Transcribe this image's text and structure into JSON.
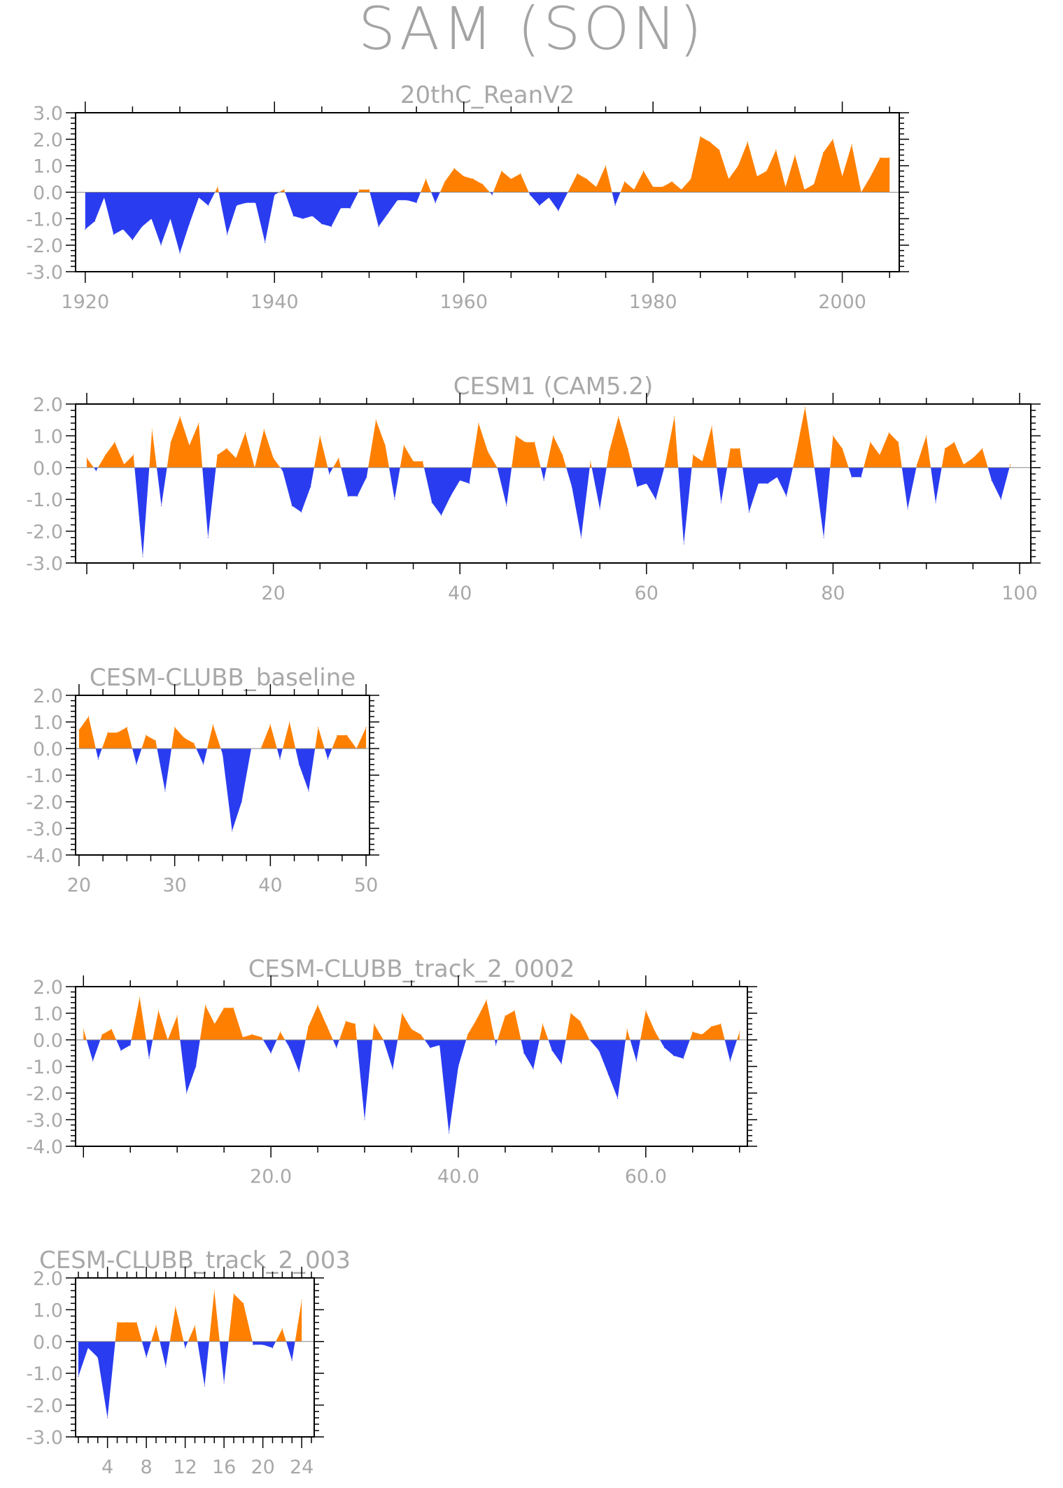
{
  "title": "SAM (SON)",
  "colors": {
    "positive": "#ff8000",
    "negative": "#2a3cf0",
    "axis": "#000000",
    "text": "#a8a8a8"
  },
  "chart_data": [
    {
      "type": "area",
      "title": "20thC_ReanV2",
      "xlabel": "",
      "ylabel": "",
      "x_start": 1920,
      "x_step": 1,
      "xlim": [
        1920,
        2005
      ],
      "ylim": [
        -3.0,
        3.0
      ],
      "xticks": [
        1920,
        1940,
        1960,
        1980,
        2000
      ],
      "xtick_labels": [
        "1920",
        "1940",
        "1960",
        "1980",
        "2000"
      ],
      "yticks": [
        -3.0,
        -2.0,
        -1.0,
        0.0,
        1.0,
        2.0,
        3.0
      ],
      "ytick_labels": [
        "-3.0",
        "-2.0",
        "-1.0",
        "0.0",
        "1.0",
        "2.0",
        "3.0"
      ],
      "values": [
        -1.4,
        -1.1,
        -0.2,
        -1.6,
        -1.4,
        -1.8,
        -1.3,
        -1.0,
        -2.0,
        -1.0,
        -2.3,
        -1.2,
        -0.2,
        -0.5,
        0.2,
        -1.6,
        -0.5,
        -0.4,
        -0.4,
        -1.9,
        -0.1,
        0.1,
        -0.9,
        -1.0,
        -0.9,
        -1.2,
        -1.3,
        -0.6,
        -0.6,
        0.1,
        0.1,
        -1.3,
        -0.8,
        -0.3,
        -0.3,
        -0.4,
        0.5,
        -0.4,
        0.4,
        0.9,
        0.6,
        0.5,
        0.3,
        -0.1,
        0.8,
        0.5,
        0.7,
        -0.1,
        -0.5,
        -0.2,
        -0.7,
        0.0,
        0.7,
        0.5,
        0.2,
        1.0,
        -0.5,
        0.4,
        0.1,
        0.8,
        0.2,
        0.2,
        0.4,
        0.1,
        0.5,
        2.1,
        1.9,
        1.6,
        0.5,
        1.0,
        1.9,
        0.6,
        0.8,
        1.6,
        0.2,
        1.4,
        0.1,
        0.3,
        1.5,
        2.0,
        0.6,
        1.8,
        0.0,
        0.6,
        1.3,
        1.3
      ]
    },
    {
      "type": "area",
      "title": "CESM1 (CAM5.2)",
      "xlabel": "",
      "ylabel": "",
      "x_start": 0,
      "x_step": 1,
      "xlim": [
        0,
        100
      ],
      "ylim": [
        -3.0,
        2.0
      ],
      "xticks": [
        20,
        40,
        60,
        80,
        100
      ],
      "xtick_labels": [
        "20",
        "40",
        "60",
        "80",
        "100"
      ],
      "yticks": [
        -3.0,
        -2.0,
        -1.0,
        0.0,
        1.0,
        2.0
      ],
      "ytick_labels": [
        "-3.0",
        "-2.0",
        "-1.0",
        "0.0",
        "1.0",
        "2.0"
      ],
      "values": [
        0.3,
        -0.1,
        0.4,
        0.8,
        0.1,
        0.4,
        -2.8,
        1.2,
        -1.2,
        0.8,
        1.6,
        0.7,
        1.4,
        -2.2,
        0.4,
        0.6,
        0.3,
        1.1,
        0.0,
        1.2,
        0.3,
        -0.1,
        -1.2,
        -1.4,
        -0.6,
        1.0,
        -0.2,
        0.3,
        -0.9,
        -0.9,
        -0.3,
        1.5,
        0.7,
        -1.0,
        0.7,
        0.2,
        0.2,
        -1.1,
        -1.5,
        -0.9,
        -0.4,
        -0.5,
        1.4,
        0.5,
        0.0,
        -1.2,
        1.0,
        0.8,
        0.8,
        -0.4,
        1.0,
        0.4,
        -0.6,
        -2.2,
        0.2,
        -1.3,
        0.5,
        1.6,
        0.6,
        -0.6,
        -0.5,
        -1.0,
        0.1,
        1.6,
        -2.4,
        0.4,
        0.2,
        1.3,
        -1.1,
        0.6,
        0.6,
        -1.4,
        -0.5,
        -0.5,
        -0.3,
        -0.9,
        0.4,
        1.9,
        0.0,
        -2.2,
        1.0,
        0.6,
        -0.3,
        -0.3,
        0.8,
        0.4,
        1.1,
        0.8,
        -1.3,
        0.1,
        1.0,
        -1.1,
        0.6,
        0.8,
        0.1,
        0.3,
        0.6,
        -0.4,
        -1.0,
        0.1
      ]
    },
    {
      "type": "area",
      "title": "CESM-CLUBB_baseline",
      "xlabel": "",
      "ylabel": "",
      "x_start": 20,
      "x_step": 1,
      "xlim": [
        20,
        50
      ],
      "ylim": [
        -4.0,
        2.0
      ],
      "xticks": [
        20,
        30,
        40,
        50
      ],
      "xtick_labels": [
        "20",
        "30",
        "40",
        "50"
      ],
      "yticks": [
        -4.0,
        -3.0,
        -2.0,
        -1.0,
        0.0,
        1.0,
        2.0
      ],
      "ytick_labels": [
        "-4.0",
        "-3.0",
        "-2.0",
        "-1.0",
        "0.0",
        "1.0",
        "2.0"
      ],
      "values": [
        0.7,
        1.2,
        -0.4,
        0.6,
        0.6,
        0.8,
        -0.6,
        0.5,
        0.3,
        -1.6,
        0.8,
        0.4,
        0.2,
        -0.6,
        0.9,
        -0.2,
        -3.1,
        -2.0,
        0.0,
        0.0,
        0.9,
        -0.4,
        1.0,
        -0.6,
        -1.6,
        0.8,
        -0.4,
        0.5,
        0.5,
        0.0,
        0.8
      ]
    },
    {
      "type": "area",
      "title": "CESM-CLUBB_track_2_0002",
      "xlabel": "",
      "ylabel": "",
      "x_start": 0,
      "x_step": 1,
      "xlim": [
        0,
        70
      ],
      "ylim": [
        -4.0,
        2.0
      ],
      "xticks": [
        20.0,
        40.0,
        60.0
      ],
      "xtick_labels": [
        "20.0",
        "40.0",
        "60.0"
      ],
      "yticks": [
        -4.0,
        -3.0,
        -2.0,
        -1.0,
        0.0,
        1.0,
        2.0
      ],
      "ytick_labels": [
        "-4.0",
        "-3.0",
        "-2.0",
        "-1.0",
        "0.0",
        "1.0",
        "2.0"
      ],
      "values": [
        0.4,
        -0.8,
        0.2,
        0.4,
        -0.4,
        -0.2,
        1.6,
        -0.7,
        1.1,
        0.0,
        0.9,
        -2.0,
        -1.0,
        1.3,
        0.6,
        1.2,
        1.2,
        0.1,
        0.2,
        0.1,
        -0.5,
        0.3,
        -0.3,
        -1.2,
        0.5,
        1.3,
        0.5,
        -0.3,
        0.7,
        0.6,
        -3.0,
        0.6,
        0.0,
        -1.1,
        1.0,
        0.4,
        0.2,
        -0.3,
        -0.2,
        -3.5,
        -1.0,
        0.2,
        0.8,
        1.5,
        -0.2,
        0.9,
        1.1,
        -0.5,
        -1.1,
        0.6,
        -0.4,
        -0.9,
        1.0,
        0.7,
        0.0,
        -0.4,
        -1.3,
        -2.2,
        0.4,
        -0.8,
        1.1,
        0.3,
        -0.3,
        -0.6,
        -0.7,
        0.3,
        0.2,
        0.5,
        0.6,
        -0.8,
        0.3
      ]
    },
    {
      "type": "area",
      "title": "CESM-CLUBB_track_2_003",
      "xlabel": "",
      "ylabel": "",
      "x_start": 1,
      "x_step": 1,
      "xlim": [
        1,
        25
      ],
      "ylim": [
        -3.0,
        2.0
      ],
      "xticks": [
        4,
        8,
        12,
        16,
        20,
        24
      ],
      "xtick_labels": [
        "4",
        "8",
        "12",
        "16",
        "20",
        "24"
      ],
      "yticks": [
        -3.0,
        -2.0,
        -1.0,
        0.0,
        1.0,
        2.0
      ],
      "ytick_labels": [
        "-3.0",
        "-2.0",
        "-1.0",
        "0.0",
        "1.0",
        "2.0"
      ],
      "values": [
        -1.1,
        -0.2,
        -0.5,
        -2.4,
        0.6,
        0.6,
        0.6,
        -0.5,
        0.5,
        -0.8,
        1.1,
        -0.2,
        0.5,
        -1.4,
        1.6,
        -1.3,
        1.5,
        1.2,
        -0.1,
        -0.1,
        -0.2,
        0.4,
        -0.6,
        1.3
      ]
    }
  ]
}
